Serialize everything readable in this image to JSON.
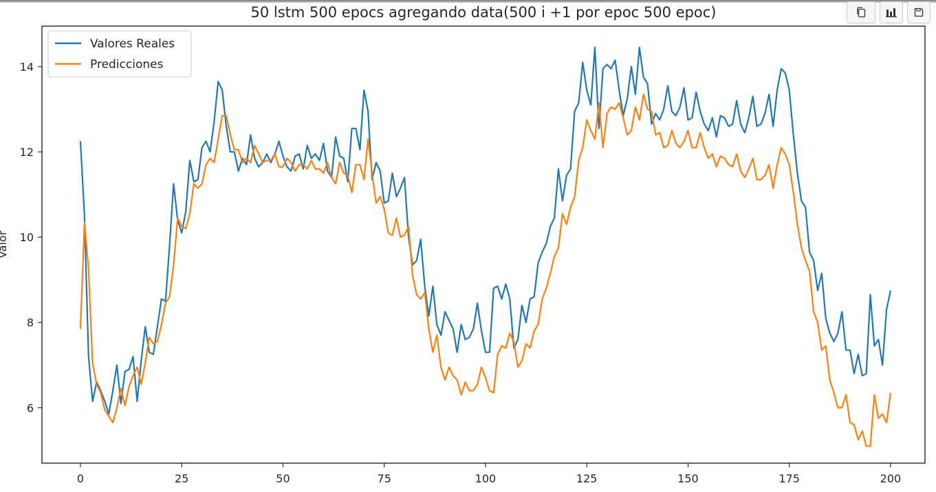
{
  "toolbar": {
    "copy_icon": "copy-icon",
    "chart_icon": "bar-chart-icon",
    "save_icon": "save-icon"
  },
  "colors": {
    "series_real": "#1f77b4",
    "series_pred": "#ff7f0e",
    "axes": "#000000"
  },
  "chart_data": {
    "type": "line",
    "title": "50 lstm 500 epocs agregando data(500 i +1 por epoc 500 epoc)",
    "xlabel": "",
    "ylabel": "Valor",
    "xlim": [
      -9.5,
      208.5
    ],
    "ylim": [
      4.7,
      14.95
    ],
    "xticks": [
      0,
      25,
      50,
      75,
      100,
      125,
      150,
      175,
      200
    ],
    "yticks": [
      6,
      8,
      10,
      12,
      14
    ],
    "legend": "upper-left",
    "series": [
      {
        "name": "Valores Reales",
        "values": [
          12.25,
          10.5,
          7.2,
          6.15,
          6.6,
          6.4,
          6.15,
          5.85,
          6.4,
          7.0,
          6.1,
          6.85,
          6.9,
          7.2,
          6.15,
          7.1,
          7.9,
          7.3,
          7.25,
          7.9,
          8.55,
          8.5,
          9.8,
          11.25,
          10.4,
          10.1,
          10.6,
          11.8,
          11.3,
          11.35,
          12.1,
          12.25,
          12.0,
          12.7,
          13.65,
          13.45,
          12.6,
          12.0,
          12.0,
          11.55,
          11.85,
          11.7,
          12.4,
          11.85,
          11.65,
          11.75,
          11.95,
          11.75,
          11.95,
          12.25,
          11.9,
          11.65,
          11.55,
          11.9,
          11.95,
          11.6,
          12.15,
          11.85,
          11.95,
          11.8,
          12.2,
          11.55,
          11.4,
          12.35,
          11.9,
          11.85,
          11.3,
          12.55,
          12.55,
          12.05,
          13.45,
          12.95,
          11.35,
          11.75,
          11.55,
          10.8,
          10.85,
          11.5,
          10.95,
          11.15,
          11.4,
          10.0,
          9.35,
          9.45,
          9.95,
          8.85,
          8.15,
          8.85,
          7.95,
          7.7,
          8.25,
          8.05,
          7.85,
          7.3,
          7.95,
          7.6,
          7.65,
          7.85,
          8.45,
          7.8,
          7.3,
          7.3,
          8.8,
          8.85,
          8.55,
          8.9,
          8.55,
          7.4,
          7.6,
          8.4,
          8.0,
          8.55,
          8.6,
          9.4,
          9.65,
          9.85,
          10.25,
          10.45,
          11.6,
          10.85,
          11.45,
          11.6,
          12.95,
          13.15,
          14.1,
          13.45,
          13.1,
          14.45,
          12.55,
          13.95,
          14.05,
          13.95,
          14.15,
          13.45,
          12.85,
          13.25,
          14.0,
          13.35,
          14.45,
          13.75,
          13.6,
          12.65,
          12.9,
          12.75,
          13.0,
          13.55,
          12.95,
          12.85,
          13.05,
          13.5,
          12.75,
          12.8,
          13.4,
          12.95,
          12.65,
          12.5,
          12.8,
          12.35,
          12.85,
          12.8,
          12.6,
          12.65,
          13.2,
          12.65,
          12.45,
          12.8,
          13.3,
          12.6,
          12.65,
          12.9,
          13.35,
          12.6,
          13.45,
          13.95,
          13.85,
          13.45,
          12.4,
          11.5,
          10.85,
          10.7,
          9.65,
          9.45,
          8.75,
          9.15,
          8.1,
          7.75,
          7.55,
          7.75,
          8.25,
          7.35,
          7.35,
          6.8,
          7.25,
          6.75,
          6.8,
          8.65,
          7.45,
          7.6,
          7.0,
          8.3,
          8.75
        ]
      },
      {
        "name": "Predicciones",
        "values": [
          7.85,
          10.35,
          9.25,
          7.05,
          6.55,
          6.35,
          5.95,
          5.8,
          5.65,
          6.0,
          6.45,
          6.05,
          6.5,
          6.75,
          6.95,
          6.55,
          7.05,
          7.65,
          7.5,
          7.55,
          7.95,
          8.45,
          8.6,
          9.35,
          10.45,
          10.25,
          10.2,
          10.55,
          11.25,
          11.15,
          11.25,
          11.7,
          11.85,
          11.75,
          12.3,
          12.85,
          12.85,
          12.4,
          12.05,
          12.05,
          11.75,
          11.85,
          11.75,
          12.15,
          11.95,
          11.75,
          11.8,
          11.8,
          11.95,
          11.65,
          11.65,
          11.85,
          11.75,
          11.55,
          11.7,
          11.7,
          11.6,
          11.8,
          11.6,
          11.6,
          11.5,
          11.75,
          11.4,
          11.25,
          11.75,
          11.5,
          11.45,
          11.05,
          11.7,
          11.7,
          11.35,
          12.3,
          11.5,
          10.8,
          10.95,
          10.65,
          10.1,
          10.05,
          10.45,
          10.0,
          10.05,
          10.25,
          9.1,
          8.65,
          8.55,
          8.7,
          7.85,
          7.3,
          7.7,
          6.95,
          6.65,
          6.95,
          6.75,
          6.65,
          6.3,
          6.6,
          6.4,
          6.4,
          6.55,
          6.95,
          6.7,
          6.4,
          6.35,
          7.25,
          7.45,
          7.4,
          7.75,
          7.55,
          6.95,
          7.1,
          7.5,
          7.4,
          7.8,
          7.95,
          8.55,
          8.8,
          9.15,
          9.55,
          9.75,
          10.55,
          10.3,
          10.7,
          10.95,
          11.8,
          12.1,
          12.75,
          12.5,
          12.3,
          13.15,
          12.1,
          12.9,
          13.05,
          13.0,
          13.15,
          12.8,
          12.4,
          12.5,
          13.05,
          12.75,
          13.35,
          13.0,
          12.95,
          12.4,
          12.45,
          12.1,
          12.15,
          12.5,
          12.2,
          12.1,
          12.25,
          12.5,
          12.1,
          12.1,
          12.45,
          12.1,
          11.85,
          11.95,
          11.65,
          11.9,
          11.85,
          11.7,
          11.65,
          11.95,
          11.55,
          11.4,
          11.6,
          11.85,
          11.35,
          11.35,
          11.45,
          11.7,
          11.15,
          11.7,
          12.1,
          11.95,
          11.7,
          11.05,
          10.3,
          9.75,
          9.45,
          9.2,
          8.25,
          8.0,
          7.35,
          7.45,
          6.65,
          6.35,
          6.0,
          6.0,
          6.3,
          5.65,
          5.6,
          5.25,
          5.45,
          5.1,
          5.1,
          6.3,
          5.75,
          5.85,
          5.65,
          6.35
        ]
      }
    ]
  }
}
